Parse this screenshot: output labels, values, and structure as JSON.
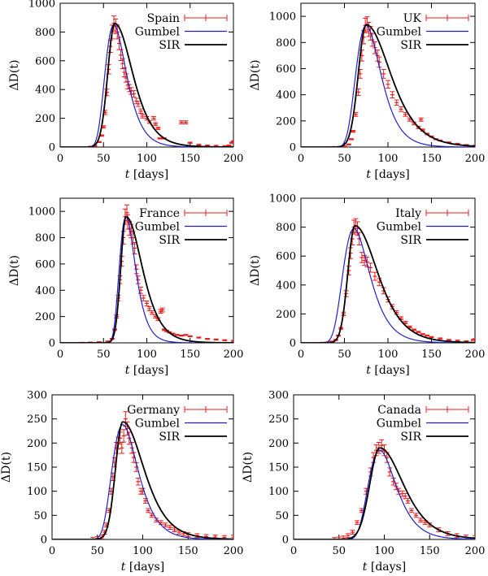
{
  "colors": {
    "data": "#ee1c1c",
    "gumbel": "#2020cc",
    "sir": "#000000",
    "frame": "#000000"
  },
  "chart_data": [
    {
      "type": "line",
      "legend": [
        "Spain",
        "Gumbel",
        "SIR"
      ],
      "legend_position": "top-right",
      "xlabel_var": "t",
      "xlabel_unit": " [days]",
      "ylabel": "ΔD(t)",
      "xlim": [
        0,
        200
      ],
      "ylim": [
        0,
        1000
      ],
      "xticks": [
        0,
        50,
        100,
        150,
        200
      ],
      "yticks": [
        0,
        200,
        400,
        600,
        800,
        1000
      ],
      "grid": false,
      "gumbel": {
        "peak_t": 62,
        "peak_v": 850,
        "beta": 12,
        "t0": 35
      },
      "sir": {
        "peak_t": 63,
        "peak_v": 860,
        "rise": 8,
        "fall": 22,
        "t0": 35
      },
      "data_points": [
        [
          35,
          2
        ],
        [
          40,
          8
        ],
        [
          45,
          35
        ],
        [
          48,
          80
        ],
        [
          50,
          140
        ],
        [
          52,
          240
        ],
        [
          54,
          380
        ],
        [
          56,
          540
        ],
        [
          58,
          700
        ],
        [
          60,
          800
        ],
        [
          62,
          860
        ],
        [
          64,
          840
        ],
        [
          66,
          800
        ],
        [
          68,
          720
        ],
        [
          70,
          640
        ],
        [
          72,
          580
        ],
        [
          74,
          520
        ],
        [
          76,
          480
        ],
        [
          78,
          430
        ],
        [
          80,
          410
        ],
        [
          82,
          390
        ],
        [
          85,
          370
        ],
        [
          88,
          320
        ],
        [
          90,
          300
        ],
        [
          93,
          250
        ],
        [
          95,
          215
        ],
        [
          100,
          200
        ],
        [
          103,
          175
        ],
        [
          108,
          200
        ],
        [
          110,
          160
        ],
        [
          113,
          130
        ],
        [
          115,
          60
        ],
        [
          120,
          60
        ],
        [
          140,
          172
        ],
        [
          145,
          172
        ],
        [
          150,
          30
        ],
        [
          160,
          15
        ],
        [
          170,
          10
        ],
        [
          180,
          8
        ],
        [
          190,
          6
        ],
        [
          195,
          10
        ],
        [
          198,
          30
        ],
        [
          200,
          40
        ]
      ]
    },
    {
      "type": "line",
      "legend": [
        "UK",
        "Gumbel",
        "SIR"
      ],
      "legend_position": "top-right",
      "xlabel_var": "t",
      "xlabel_unit": " [days]",
      "ylabel": "ΔD(t)",
      "xlim": [
        0,
        200
      ],
      "ylim": [
        0,
        1100
      ],
      "xticks": [
        0,
        50,
        100,
        150,
        200
      ],
      "yticks": [
        0,
        200,
        400,
        600,
        800,
        1000
      ],
      "grid": false,
      "gumbel": {
        "peak_t": 75,
        "peak_v": 930,
        "beta": 14,
        "t0": 40
      },
      "sir": {
        "peak_t": 75,
        "peak_v": 935,
        "rise": 9,
        "fall": 30,
        "t0": 40
      },
      "data_points": [
        [
          38,
          0
        ],
        [
          45,
          2
        ],
        [
          50,
          5
        ],
        [
          55,
          20
        ],
        [
          58,
          60
        ],
        [
          60,
          120
        ],
        [
          63,
          250
        ],
        [
          66,
          420
        ],
        [
          68,
          560
        ],
        [
          70,
          700
        ],
        [
          72,
          840
        ],
        [
          74,
          930
        ],
        [
          76,
          940
        ],
        [
          78,
          900
        ],
        [
          80,
          870
        ],
        [
          82,
          820
        ],
        [
          85,
          760
        ],
        [
          88,
          700
        ],
        [
          90,
          650
        ],
        [
          95,
          560
        ],
        [
          100,
          480
        ],
        [
          105,
          400
        ],
        [
          110,
          340
        ],
        [
          115,
          290
        ],
        [
          120,
          250
        ],
        [
          125,
          210
        ],
        [
          130,
          180
        ],
        [
          135,
          150
        ],
        [
          138,
          210
        ],
        [
          140,
          130
        ],
        [
          145,
          100
        ],
        [
          150,
          80
        ],
        [
          155,
          60
        ],
        [
          160,
          50
        ],
        [
          170,
          35
        ],
        [
          180,
          25
        ],
        [
          190,
          15
        ],
        [
          200,
          10
        ]
      ]
    },
    {
      "type": "line",
      "legend": [
        "France",
        "Gumbel",
        "SIR"
      ],
      "legend_position": "top-right",
      "xlabel_var": "t",
      "xlabel_unit": " [days]",
      "ylabel": "ΔD(t)",
      "xlim": [
        0,
        200
      ],
      "ylim": [
        0,
        1100
      ],
      "xticks": [
        0,
        50,
        100,
        150,
        200
      ],
      "yticks": [
        0,
        200,
        400,
        600,
        800,
        1000
      ],
      "grid": false,
      "gumbel": {
        "peak_t": 76,
        "peak_v": 960,
        "beta": 9,
        "t0": 45
      },
      "sir": {
        "peak_t": 76,
        "peak_v": 960,
        "rise": 6,
        "fall": 20,
        "t0": 45
      },
      "data_points": [
        [
          25,
          0
        ],
        [
          35,
          2
        ],
        [
          45,
          5
        ],
        [
          55,
          10
        ],
        [
          60,
          30
        ],
        [
          63,
          100
        ],
        [
          65,
          200
        ],
        [
          67,
          340
        ],
        [
          69,
          480
        ],
        [
          71,
          620
        ],
        [
          73,
          800
        ],
        [
          75,
          960
        ],
        [
          77,
          990
        ],
        [
          78,
          920
        ],
        [
          80,
          870
        ],
        [
          82,
          850
        ],
        [
          84,
          800
        ],
        [
          86,
          720
        ],
        [
          88,
          560
        ],
        [
          90,
          480
        ],
        [
          93,
          400
        ],
        [
          96,
          340
        ],
        [
          100,
          300
        ],
        [
          103,
          260
        ],
        [
          106,
          230
        ],
        [
          110,
          200
        ],
        [
          113,
          180
        ],
        [
          116,
          240
        ],
        [
          118,
          250
        ],
        [
          120,
          100
        ],
        [
          123,
          90
        ],
        [
          126,
          80
        ],
        [
          130,
          70
        ],
        [
          135,
          60
        ],
        [
          140,
          55
        ],
        [
          145,
          60
        ],
        [
          150,
          50
        ],
        [
          160,
          40
        ],
        [
          170,
          30
        ],
        [
          180,
          25
        ],
        [
          190,
          20
        ],
        [
          200,
          15
        ]
      ]
    },
    {
      "type": "line",
      "legend": [
        "Italy",
        "Gumbel",
        "SIR"
      ],
      "legend_position": "top-right",
      "xlabel_var": "t",
      "xlabel_unit": " [days]",
      "ylabel": "ΔD(t)",
      "xlim": [
        0,
        200
      ],
      "ylim": [
        0,
        1000
      ],
      "xticks": [
        0,
        50,
        100,
        150,
        200
      ],
      "yticks": [
        0,
        200,
        400,
        600,
        800,
        1000
      ],
      "grid": false,
      "gumbel": {
        "peak_t": 61,
        "peak_v": 790,
        "beta": 15,
        "t0": 25
      },
      "sir": {
        "peak_t": 62,
        "peak_v": 810,
        "rise": 8,
        "fall": 28,
        "t0": 25
      },
      "data_points": [
        [
          25,
          0
        ],
        [
          30,
          2
        ],
        [
          35,
          8
        ],
        [
          40,
          20
        ],
        [
          43,
          50
        ],
        [
          46,
          100
        ],
        [
          49,
          200
        ],
        [
          52,
          340
        ],
        [
          55,
          500
        ],
        [
          57,
          620
        ],
        [
          59,
          720
        ],
        [
          61,
          800
        ],
        [
          63,
          810
        ],
        [
          65,
          790
        ],
        [
          67,
          720
        ],
        [
          70,
          590
        ],
        [
          73,
          570
        ],
        [
          76,
          560
        ],
        [
          80,
          520
        ],
        [
          85,
          460
        ],
        [
          90,
          420
        ],
        [
          95,
          360
        ],
        [
          100,
          300
        ],
        [
          105,
          250
        ],
        [
          110,
          210
        ],
        [
          115,
          170
        ],
        [
          120,
          140
        ],
        [
          125,
          110
        ],
        [
          130,
          90
        ],
        [
          135,
          75
        ],
        [
          140,
          60
        ],
        [
          145,
          50
        ],
        [
          150,
          40
        ],
        [
          160,
          30
        ],
        [
          170,
          20
        ],
        [
          180,
          15
        ],
        [
          190,
          10
        ],
        [
          198,
          20
        ],
        [
          200,
          25
        ]
      ]
    },
    {
      "type": "line",
      "legend": [
        "Germany",
        "Gumbel",
        "SIR"
      ],
      "legend_position": "top-right",
      "xlabel_var": "t",
      "xlabel_unit": " [days]",
      "ylabel": "ΔD(t)",
      "xlim": [
        0,
        200
      ],
      "ylim": [
        0,
        300
      ],
      "xticks": [
        0,
        50,
        100,
        150,
        200
      ],
      "yticks": [
        0,
        50,
        100,
        150,
        200,
        250,
        300
      ],
      "grid": false,
      "gumbel": {
        "peak_t": 78,
        "peak_v": 238,
        "beta": 14,
        "t0": 45
      },
      "sir": {
        "peak_t": 78,
        "peak_v": 244,
        "rise": 8,
        "fall": 25,
        "t0": 45
      },
      "data_points": [
        [
          45,
          0
        ],
        [
          50,
          2
        ],
        [
          55,
          5
        ],
        [
          58,
          15
        ],
        [
          60,
          30
        ],
        [
          63,
          60
        ],
        [
          65,
          100
        ],
        [
          67,
          130
        ],
        [
          69,
          160
        ],
        [
          71,
          190
        ],
        [
          73,
          200
        ],
        [
          75,
          210
        ],
        [
          77,
          190
        ],
        [
          79,
          215
        ],
        [
          81,
          250
        ],
        [
          83,
          230
        ],
        [
          85,
          210
        ],
        [
          88,
          190
        ],
        [
          90,
          170
        ],
        [
          93,
          150
        ],
        [
          95,
          120
        ],
        [
          98,
          100
        ],
        [
          100,
          100
        ],
        [
          103,
          80
        ],
        [
          106,
          60
        ],
        [
          110,
          50
        ],
        [
          115,
          40
        ],
        [
          120,
          35
        ],
        [
          125,
          30
        ],
        [
          130,
          25
        ],
        [
          135,
          20
        ],
        [
          140,
          15
        ],
        [
          145,
          12
        ],
        [
          150,
          10
        ],
        [
          160,
          8
        ],
        [
          170,
          6
        ],
        [
          180,
          5
        ],
        [
          190,
          4
        ],
        [
          200,
          5
        ]
      ]
    },
    {
      "type": "line",
      "legend": [
        "Canada",
        "Gumbel",
        "SIR"
      ],
      "legend_position": "top-right",
      "xlabel_var": "t",
      "xlabel_unit": " [days]",
      "ylabel": "ΔD(t)",
      "xlim": [
        0,
        200
      ],
      "ylim": [
        0,
        300
      ],
      "xticks": [
        0,
        50,
        100,
        150,
        200
      ],
      "yticks": [
        0,
        50,
        100,
        150,
        200,
        250,
        300
      ],
      "grid": false,
      "gumbel": {
        "peak_t": 95,
        "peak_v": 185,
        "beta": 15,
        "t0": 50
      },
      "sir": {
        "peak_t": 95,
        "peak_v": 190,
        "rise": 11,
        "fall": 28,
        "t0": 50
      },
      "data_points": [
        [
          45,
          0
        ],
        [
          50,
          1
        ],
        [
          55,
          3
        ],
        [
          60,
          8
        ],
        [
          65,
          15
        ],
        [
          70,
          35
        ],
        [
          75,
          60
        ],
        [
          80,
          100
        ],
        [
          85,
          140
        ],
        [
          88,
          170
        ],
        [
          91,
          185
        ],
        [
          94,
          190
        ],
        [
          97,
          195
        ],
        [
          100,
          185
        ],
        [
          103,
          170
        ],
        [
          106,
          140
        ],
        [
          110,
          120
        ],
        [
          113,
          110
        ],
        [
          116,
          100
        ],
        [
          120,
          95
        ],
        [
          123,
          90
        ],
        [
          126,
          80
        ],
        [
          130,
          60
        ],
        [
          135,
          50
        ],
        [
          140,
          40
        ],
        [
          145,
          35
        ],
        [
          150,
          30
        ],
        [
          160,
          20
        ],
        [
          170,
          12
        ],
        [
          180,
          8
        ],
        [
          190,
          5
        ],
        [
          200,
          4
        ]
      ]
    }
  ]
}
